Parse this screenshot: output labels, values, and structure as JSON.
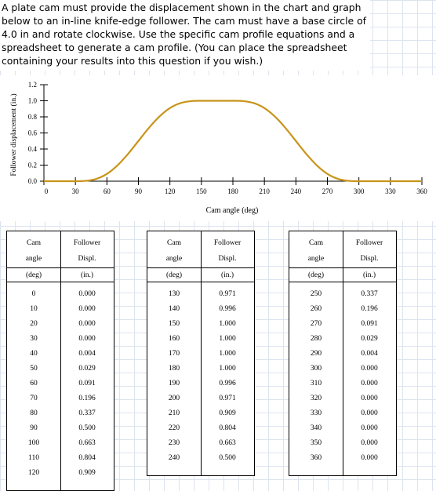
{
  "question": {
    "text": "A plate cam must provide the displacement shown in the chart and graph below to an in-line knife-edge follower. The cam must have a base circle of 4.0 in and rotate clockwise. Use the specific cam profile equations and a spreadsheet to generate a cam profile. (You can place the spreadsheet containing your results into this question if you wish.)"
  },
  "chart_data": {
    "type": "line",
    "xlabel": "Cam angle (deg)",
    "ylabel": "Follower displacement (in.)",
    "xlim": [
      0,
      360
    ],
    "ylim": [
      0,
      1.2
    ],
    "x_ticks": [
      "0",
      "30",
      "60",
      "90",
      "120",
      "150",
      "180",
      "210",
      "240",
      "270",
      "300",
      "330",
      "360"
    ],
    "y_ticks": [
      "0.0",
      "0.2",
      "0.4",
      "0.6",
      "0.8",
      "1.0",
      "1.2"
    ],
    "grid": false,
    "series_color": "#c8941a",
    "x": [
      0,
      10,
      20,
      30,
      40,
      50,
      60,
      70,
      80,
      90,
      100,
      110,
      120,
      130,
      140,
      150,
      160,
      170,
      180,
      190,
      200,
      210,
      220,
      230,
      240,
      250,
      260,
      270,
      280,
      290,
      300,
      310,
      320,
      330,
      340,
      350,
      360
    ],
    "y": [
      0.0,
      0.0,
      0.0,
      0.0,
      0.004,
      0.029,
      0.091,
      0.196,
      0.337,
      0.5,
      0.663,
      0.804,
      0.909,
      0.971,
      0.996,
      1.0,
      1.0,
      1.0,
      1.0,
      0.996,
      0.971,
      0.909,
      0.804,
      0.663,
      0.5,
      0.337,
      0.196,
      0.091,
      0.029,
      0.004,
      0.0,
      0.0,
      0.0,
      0.0,
      0.0,
      0.0,
      0.0
    ]
  },
  "tables": {
    "col1_header": [
      "Cam",
      "angle",
      "(deg)"
    ],
    "col2_header": [
      "Follower",
      "Displ.",
      "(in.)"
    ],
    "groups": [
      {
        "angles": [
          "0",
          "10",
          "20",
          "30",
          "40",
          "50",
          "60",
          "70",
          "80",
          "90",
          "100",
          "110",
          "120"
        ],
        "displ": [
          "0.000",
          "0.000",
          "0.000",
          "0.000",
          "0.004",
          "0.029",
          "0.091",
          "0.196",
          "0.337",
          "0.500",
          "0.663",
          "0.804",
          "0.909"
        ]
      },
      {
        "angles": [
          "130",
          "140",
          "150",
          "160",
          "170",
          "180",
          "190",
          "200",
          "210",
          "220",
          "230",
          "240"
        ],
        "displ": [
          "0.971",
          "0.996",
          "1.000",
          "1.000",
          "1.000",
          "1.000",
          "0.996",
          "0.971",
          "0.909",
          "0.804",
          "0.663",
          "0.500"
        ]
      },
      {
        "angles": [
          "250",
          "260",
          "270",
          "280",
          "290",
          "300",
          "310",
          "320",
          "330",
          "340",
          "350",
          "360"
        ],
        "displ": [
          "0.337",
          "0.196",
          "0.091",
          "0.029",
          "0.004",
          "0.000",
          "0.000",
          "0.000",
          "0.000",
          "0.000",
          "0.000",
          "0.000"
        ]
      }
    ]
  }
}
